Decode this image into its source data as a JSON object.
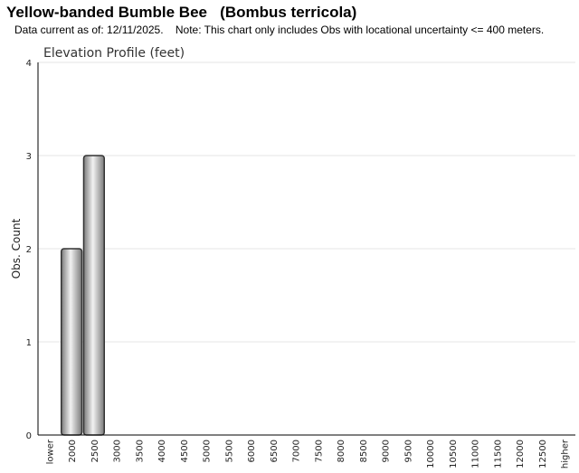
{
  "header": {
    "title": "Yellow-banded Bumble Bee   (Bombus terricola)",
    "subtitle": "Data current as of: 12/11/2025.    Note: This chart only includes Obs with locational uncertainty <= 400 meters."
  },
  "chart_data": {
    "type": "bar",
    "title": "Elevation Profile (feet)",
    "xlabel": "",
    "ylabel": "Obs. Count",
    "categories": [
      "lower",
      "2000",
      "2500",
      "3000",
      "3500",
      "4000",
      "4500",
      "5000",
      "5500",
      "6000",
      "6500",
      "7000",
      "7500",
      "8000",
      "8500",
      "9000",
      "9500",
      "10000",
      "10500",
      "11000",
      "11500",
      "12000",
      "12500",
      "higher"
    ],
    "values": [
      0,
      2,
      3,
      0,
      0,
      0,
      0,
      0,
      0,
      0,
      0,
      0,
      0,
      0,
      0,
      0,
      0,
      0,
      0,
      0,
      0,
      0,
      0,
      0
    ],
    "ylim": [
      0,
      4
    ],
    "yticks": [
      0,
      1,
      2,
      3,
      4
    ],
    "grid": true,
    "legend": "none",
    "colors": {
      "bar_edge": "#333333",
      "bar_light": "#f2f2f2",
      "bar_dark": "#7a7a7a",
      "grid": "#e6e6e6",
      "axis": "#000000"
    }
  }
}
